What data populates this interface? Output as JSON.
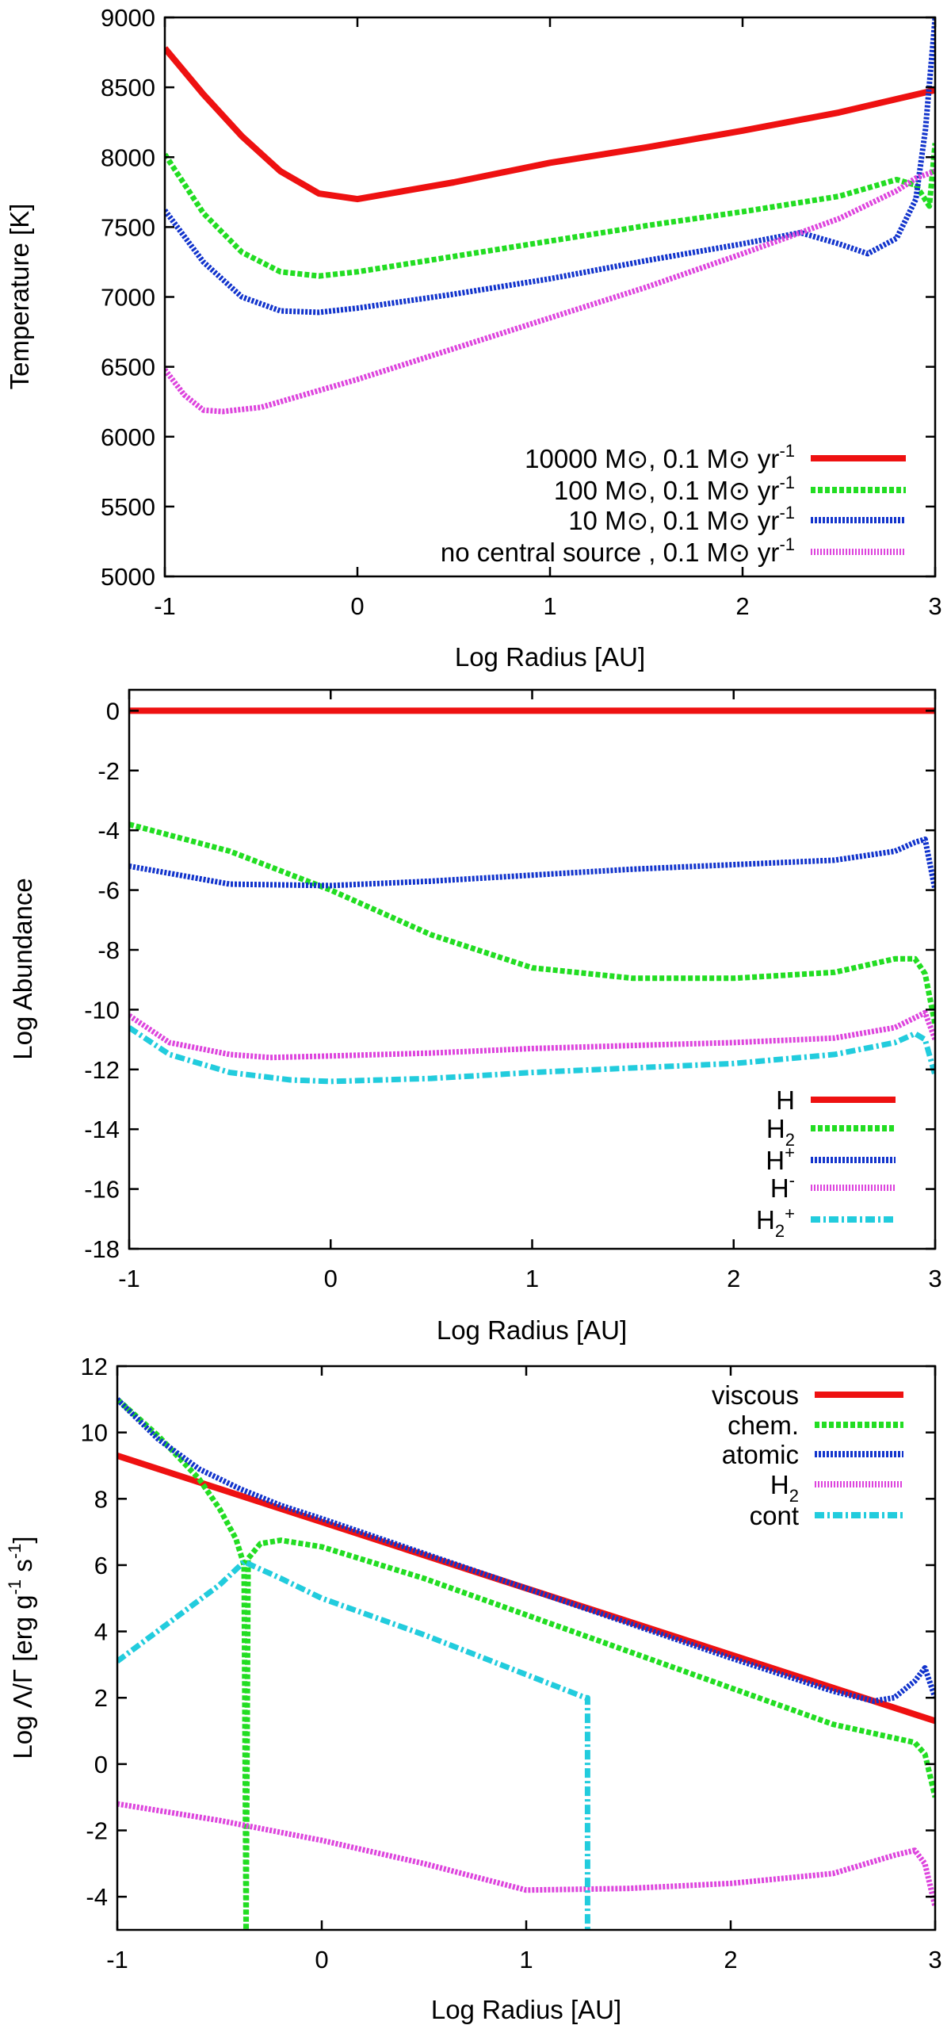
{
  "chart_data": [
    {
      "type": "line",
      "xlabel": "Log Radius [AU]",
      "ylabel": "Temperature [K]",
      "xlim": [
        -1,
        3
      ],
      "ylim": [
        5000,
        9000
      ],
      "xticks": [
        -1,
        0,
        1,
        2,
        3
      ],
      "yticks": [
        5000,
        5500,
        6000,
        6500,
        7000,
        7500,
        8000,
        8500,
        9000
      ],
      "xtick_labels": [
        "-1",
        "0",
        "1",
        "2",
        "3"
      ],
      "ytick_labels": [
        "5000",
        "5500",
        "6000",
        "6500",
        "7000",
        "7500",
        "8000",
        "8500",
        "9000"
      ],
      "legend_position": "bottom-right",
      "series": [
        {
          "name": "10000 M⊙, 0.1 M⊙ yr-1",
          "label_main": "10000 M",
          "label_mid": ", 0.1 M",
          "label_unit": " yr",
          "label_sup": "-1",
          "color": "#ee1111",
          "style": "solid",
          "x": [
            -1,
            -0.8,
            -0.6,
            -0.4,
            -0.2,
            0,
            0.5,
            1,
            1.5,
            2,
            2.5,
            3
          ],
          "y": [
            8780,
            8450,
            8150,
            7900,
            7740,
            7700,
            7820,
            7960,
            8070,
            8190,
            8320,
            8480
          ]
        },
        {
          "name": "100 M⊙, 0.1 M⊙ yr-1",
          "label_main": "100 M",
          "label_mid": ", 0.1 M",
          "label_unit": " yr",
          "label_sup": "-1",
          "color": "#22dd22",
          "style": "dashed",
          "x": [
            -1,
            -0.8,
            -0.6,
            -0.4,
            -0.2,
            0,
            0.5,
            1,
            1.5,
            2,
            2.5,
            2.8,
            2.9,
            2.97,
            3
          ],
          "y": [
            8020,
            7600,
            7320,
            7180,
            7150,
            7180,
            7290,
            7400,
            7510,
            7610,
            7720,
            7840,
            7800,
            7650,
            8100
          ]
        },
        {
          "name": "10 M⊙, 0.1 M⊙ yr-1",
          "label_main": "10 M",
          "label_mid": ", 0.1 M",
          "label_unit": " yr",
          "label_sup": "-1",
          "color": "#1133cc",
          "style": "dotted",
          "x": [
            -1,
            -0.8,
            -0.6,
            -0.4,
            -0.2,
            0,
            0.5,
            1,
            1.5,
            2,
            2.3,
            2.5,
            2.65,
            2.8,
            2.9,
            2.95,
            3
          ],
          "y": [
            7620,
            7250,
            7000,
            6900,
            6890,
            6920,
            7020,
            7130,
            7260,
            7380,
            7460,
            7380,
            7310,
            7420,
            7700,
            8200,
            9000
          ]
        },
        {
          "name": "no central source , 0.1 M⊙ yr-1",
          "label_main": "no central source , 0.1 M",
          "label_mid": "",
          "label_unit": " yr",
          "label_sup": "-1",
          "color": "#dd44dd",
          "style": "dotted",
          "x": [
            -1,
            -0.9,
            -0.8,
            -0.7,
            -0.5,
            -0.3,
            0,
            0.5,
            1,
            1.5,
            2,
            2.5,
            2.8,
            2.9,
            3
          ],
          "y": [
            6480,
            6300,
            6190,
            6180,
            6210,
            6290,
            6410,
            6630,
            6850,
            7070,
            7310,
            7560,
            7760,
            7850,
            7900
          ]
        }
      ]
    },
    {
      "type": "line",
      "xlabel": "Log Radius [AU]",
      "ylabel": "Log Abundance",
      "xlim": [
        -1,
        3
      ],
      "ylim": [
        -18,
        0.7
      ],
      "xticks": [
        -1,
        0,
        1,
        2,
        3
      ],
      "yticks": [
        -18,
        -16,
        -14,
        -12,
        -10,
        -8,
        -6,
        -4,
        -2,
        0
      ],
      "xtick_labels": [
        "-1",
        "0",
        "1",
        "2",
        "3"
      ],
      "ytick_labels": [
        "-18",
        "-16",
        "-14",
        "-12",
        "-10",
        "-8",
        "-6",
        "-4",
        "-2",
        "0"
      ],
      "legend_position": "bottom-right",
      "series": [
        {
          "name": "H",
          "label_main": "H",
          "label_sub": "",
          "label_sup": "",
          "color": "#ee1111",
          "style": "solid",
          "x": [
            -1,
            0,
            1,
            2,
            3
          ],
          "y": [
            0,
            0,
            0,
            0,
            0
          ]
        },
        {
          "name": "H2",
          "label_main": "H",
          "label_sub": "2",
          "label_sup": "",
          "color": "#22dd22",
          "style": "dashed",
          "x": [
            -1,
            -0.5,
            0,
            0.5,
            1,
            1.5,
            2,
            2.5,
            2.8,
            2.9,
            2.95,
            3
          ],
          "y": [
            -3.8,
            -4.7,
            -6.0,
            -7.5,
            -8.6,
            -8.95,
            -8.95,
            -8.75,
            -8.3,
            -8.3,
            -8.8,
            -10.5
          ]
        },
        {
          "name": "H+",
          "label_main": "H",
          "label_sub": "",
          "label_sup": "+",
          "color": "#1133cc",
          "style": "dotted",
          "x": [
            -1,
            -0.5,
            0,
            0.5,
            1,
            1.5,
            2,
            2.5,
            2.8,
            2.9,
            2.95,
            3
          ],
          "y": [
            -5.2,
            -5.8,
            -5.85,
            -5.7,
            -5.5,
            -5.3,
            -5.15,
            -5.0,
            -4.7,
            -4.4,
            -4.3,
            -6.0
          ]
        },
        {
          "name": "H-",
          "label_main": "H",
          "label_sub": "",
          "label_sup": "-",
          "color": "#dd44dd",
          "style": "dotted",
          "x": [
            -1,
            -0.8,
            -0.5,
            -0.3,
            0,
            0.5,
            1,
            1.5,
            2,
            2.5,
            2.8,
            2.95,
            3
          ],
          "y": [
            -10.2,
            -11.1,
            -11.5,
            -11.6,
            -11.55,
            -11.45,
            -11.3,
            -11.2,
            -11.1,
            -10.95,
            -10.6,
            -10.1,
            -11.0
          ]
        },
        {
          "name": "H2+",
          "label_main": "H",
          "label_sub": "2",
          "label_sup": "+",
          "color": "#22ccdd",
          "style": "dashdot",
          "x": [
            -1,
            -0.8,
            -0.5,
            -0.2,
            0,
            0.5,
            1,
            1.5,
            2,
            2.5,
            2.8,
            2.9,
            2.95,
            3
          ],
          "y": [
            -10.6,
            -11.5,
            -12.1,
            -12.35,
            -12.4,
            -12.3,
            -12.1,
            -11.95,
            -11.8,
            -11.5,
            -11.1,
            -10.8,
            -11.0,
            -12.2
          ]
        }
      ]
    },
    {
      "type": "line",
      "xlabel": "Log Radius [AU]",
      "ylabel": "Log Λ/Γ [erg g-1 s-1]",
      "ylabel_parts": {
        "a": "Log Λ/Γ [erg g",
        "b": "-1",
        "c": " s",
        "d": "-1",
        "e": "]"
      },
      "xlim": [
        -1,
        3
      ],
      "ylim": [
        -5,
        12
      ],
      "xticks": [
        -1,
        0,
        1,
        2,
        3
      ],
      "yticks": [
        -4,
        -2,
        0,
        2,
        4,
        6,
        8,
        10,
        12
      ],
      "xtick_labels": [
        "-1",
        "0",
        "1",
        "2",
        "3"
      ],
      "ytick_labels": [
        "-4",
        "-2",
        "0",
        "2",
        "4",
        "6",
        "8",
        "10",
        "12"
      ],
      "legend_position": "top-right",
      "series": [
        {
          "name": "viscous",
          "label_main": "viscous",
          "label_sub": "",
          "color": "#ee1111",
          "style": "solid",
          "x": [
            -1,
            3
          ],
          "y": [
            9.3,
            1.3
          ]
        },
        {
          "name": "chem.",
          "label_main": "chem.",
          "label_sub": "",
          "color": "#22dd22",
          "style": "dashed",
          "x": [
            -1,
            -0.8,
            -0.6,
            -0.5,
            -0.42,
            -0.38,
            -0.37,
            -0.36,
            -0.3,
            -0.2,
            0,
            0.5,
            1,
            1.5,
            2,
            2.5,
            2.9,
            2.95,
            3
          ],
          "y": [
            11.0,
            9.9,
            8.6,
            7.7,
            6.8,
            6.0,
            -5.0,
            6.2,
            6.65,
            6.75,
            6.55,
            5.6,
            4.5,
            3.4,
            2.3,
            1.2,
            0.65,
            0.3,
            -1.0
          ]
        },
        {
          "name": "atomic",
          "label_main": "atomic",
          "label_sub": "",
          "color": "#1133cc",
          "style": "dotted",
          "x": [
            -1,
            -0.8,
            -0.6,
            -0.4,
            -0.2,
            0,
            0.5,
            1,
            1.5,
            2,
            2.5,
            2.7,
            2.8,
            2.9,
            2.95,
            3
          ],
          "y": [
            11.0,
            9.8,
            8.9,
            8.3,
            7.8,
            7.4,
            6.35,
            5.3,
            4.25,
            3.2,
            2.2,
            1.9,
            2.0,
            2.5,
            2.9,
            2.0
          ]
        },
        {
          "name": "H2",
          "label_main": "H",
          "label_sub": "2",
          "color": "#dd44dd",
          "style": "dotted",
          "x": [
            -1,
            -0.5,
            0,
            0.5,
            1,
            1.5,
            2,
            2.5,
            2.8,
            2.9,
            2.95,
            3
          ],
          "y": [
            -1.2,
            -1.7,
            -2.3,
            -3.0,
            -3.8,
            -3.75,
            -3.6,
            -3.3,
            -2.75,
            -2.6,
            -3.0,
            -4.3
          ]
        },
        {
          "name": "cont",
          "label_main": "cont",
          "label_sub": "",
          "color": "#22ccdd",
          "style": "dashdot",
          "x": [
            -1,
            -0.5,
            -0.38,
            -0.2,
            0,
            0.5,
            1,
            1.29,
            1.3,
            1.3
          ],
          "y": [
            3.1,
            5.4,
            6.1,
            5.6,
            5.0,
            3.9,
            2.7,
            2.0,
            2.0,
            -5.0
          ]
        }
      ]
    }
  ]
}
